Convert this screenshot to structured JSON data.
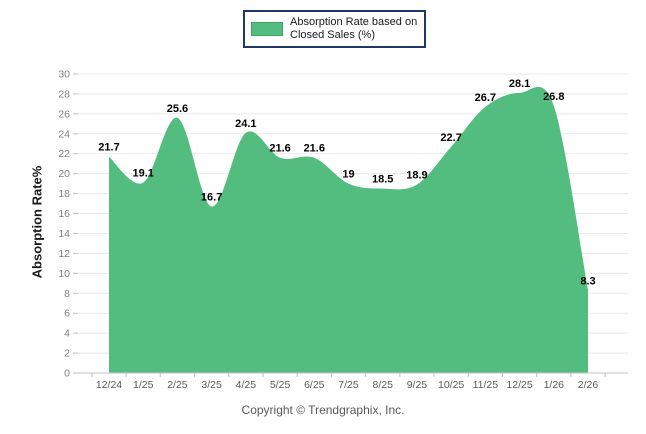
{
  "legend": {
    "line1": "Absorption Rate based on",
    "line2": "Closed Sales (%)"
  },
  "footer": {
    "text": "Copyright © Trendgraphix, Inc."
  },
  "chart_data": {
    "type": "area",
    "title": "",
    "xlabel": "",
    "ylabel": "Absorption Rate%",
    "categories": [
      "12/24",
      "1/25",
      "2/25",
      "3/25",
      "4/25",
      "5/25",
      "6/25",
      "7/25",
      "8/25",
      "9/25",
      "10/25",
      "11/25",
      "12/25",
      "1/26",
      "2/26"
    ],
    "values": [
      21.7,
      19.1,
      25.6,
      16.7,
      24.1,
      21.6,
      21.6,
      19,
      18.5,
      18.9,
      22.7,
      26.7,
      28.1,
      26.8,
      8.3
    ],
    "value_labels": [
      "21.7",
      "19.1",
      "25.6",
      "16.7",
      "24.1",
      "21.6",
      "21.6",
      "19",
      "18.5",
      "18.9",
      "22.7",
      "26.7",
      "28.1",
      "26.8",
      "8.3"
    ],
    "ylim": [
      0,
      30
    ],
    "ytick_step": 2,
    "grid": true,
    "legend_position": "top-center",
    "colors": {
      "area": "#53bd7f",
      "grid": "#e8e8e8",
      "axis": "#c3c3c3",
      "tick": "#bfbfbf",
      "axis_tick_label": "#7f7f7f",
      "x_tick_label": "#595959",
      "data_label": "#000000",
      "legend_border": "#1f3864",
      "footer_text": "#595959"
    }
  }
}
